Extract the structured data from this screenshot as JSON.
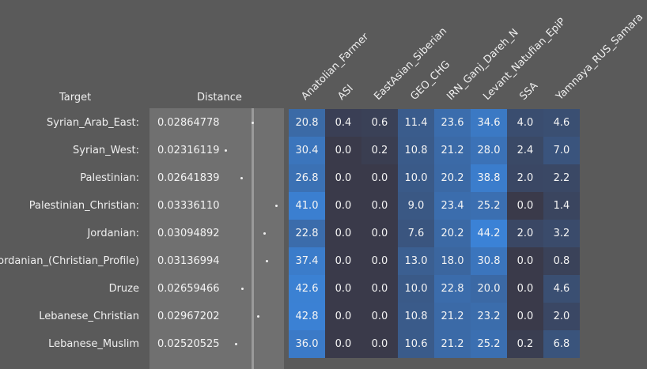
{
  "headers": {
    "target": "Target",
    "distance": "Distance",
    "components": [
      "Anatolian_Farmer",
      "ASI",
      "EastAsian_Siberian",
      "GEO_CHG",
      "IRN_Ganj_Dareh_N",
      "Levant_Natufian_EpiP",
      "SSA",
      "Yamnaya_RUS_Samara"
    ]
  },
  "rows": [
    {
      "target": "Syrian_Arab_East:",
      "distance": "0.02864778",
      "values": [
        "20.8",
        "0.4",
        "0.6",
        "11.4",
        "23.6",
        "34.6",
        "4.0",
        "4.6"
      ]
    },
    {
      "target": "Syrian_West:",
      "distance": "0.02316119",
      "values": [
        "30.4",
        "0.0",
        "0.2",
        "10.8",
        "21.2",
        "28.0",
        "2.4",
        "7.0"
      ]
    },
    {
      "target": "Palestinian:",
      "distance": "0.02641839",
      "values": [
        "26.8",
        "0.0",
        "0.0",
        "10.0",
        "20.2",
        "38.8",
        "2.0",
        "2.2"
      ]
    },
    {
      "target": "Palestinian_Christian:",
      "distance": "0.03336110",
      "values": [
        "41.0",
        "0.0",
        "0.0",
        "9.0",
        "23.4",
        "25.2",
        "0.0",
        "1.4"
      ]
    },
    {
      "target": "Jordanian:",
      "distance": "0.03094892",
      "values": [
        "22.8",
        "0.0",
        "0.0",
        "7.6",
        "20.2",
        "44.2",
        "2.0",
        "3.2"
      ]
    },
    {
      "target": "Jordanian_(Christian_Profile)",
      "distance": "0.03136994",
      "values": [
        "37.4",
        "0.0",
        "0.0",
        "13.0",
        "18.0",
        "30.8",
        "0.0",
        "0.8"
      ]
    },
    {
      "target": "Druze",
      "distance": "0.02659466",
      "values": [
        "42.6",
        "0.0",
        "0.0",
        "10.0",
        "22.8",
        "20.0",
        "0.0",
        "4.6"
      ]
    },
    {
      "target": "Lebanese_Christian",
      "distance": "0.02967202",
      "values": [
        "42.8",
        "0.0",
        "0.0",
        "10.8",
        "21.2",
        "23.2",
        "0.0",
        "2.0"
      ]
    },
    {
      "target": "Lebanese_Muslim",
      "distance": "0.02520525",
      "values": [
        "36.0",
        "0.0",
        "0.0",
        "10.6",
        "21.2",
        "25.2",
        "0.2",
        "6.8"
      ]
    }
  ],
  "colors": {
    "background": "#5a5a5a",
    "distance_panel": "#707070",
    "cell_low": "#3a3a48",
    "cell_high": "#3b82d6"
  }
}
